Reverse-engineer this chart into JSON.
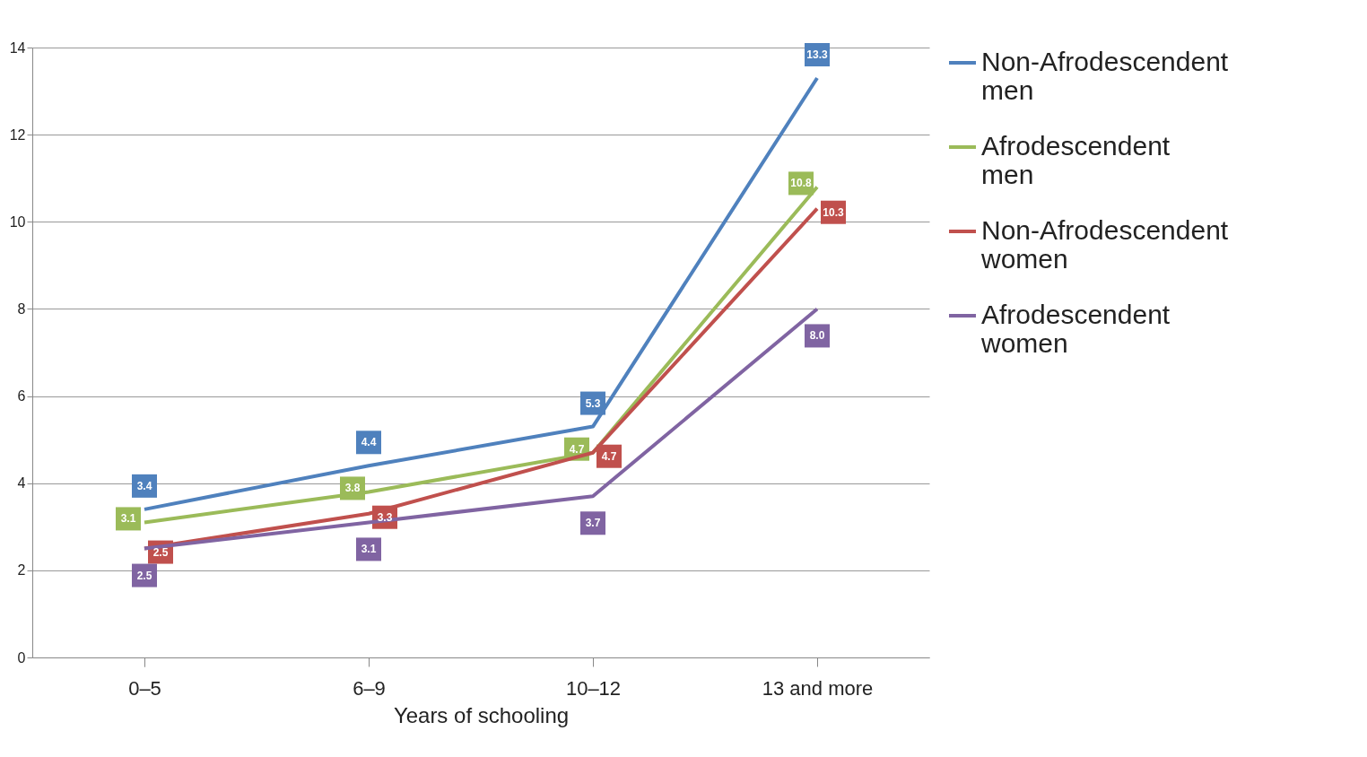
{
  "chart_data": {
    "type": "line",
    "xlabel": "Years of schooling",
    "categories": [
      "0–5",
      "6–9",
      "10–12",
      "13 and more"
    ],
    "ylim": [
      0,
      14
    ],
    "yticks": [
      0,
      2,
      4,
      6,
      8,
      10,
      12,
      14
    ],
    "grid": "y",
    "legend": "right",
    "marker": "none",
    "line_style": "solid",
    "series": [
      {
        "name": "Non-Afrodescendent men",
        "color": "#4f81bd",
        "values": [
          3.4,
          4.4,
          5.3,
          13.3
        ],
        "value_labels": [
          "3.4",
          "4.4",
          "5.3",
          "13.3"
        ]
      },
      {
        "name": "Afrodescendent men",
        "color": "#9bbb59",
        "values": [
          3.1,
          3.8,
          4.7,
          10.8
        ],
        "value_labels": [
          "3.1",
          "3.8",
          "4.7",
          "10.8"
        ]
      },
      {
        "name": "Non-Afrodescendent women",
        "color": "#c0504d",
        "values": [
          2.5,
          3.3,
          4.7,
          10.3
        ],
        "value_labels": [
          "2.5",
          "3.3",
          "4.7",
          "10.3"
        ]
      },
      {
        "name": "Afrodescendent women",
        "color": "#8064a2",
        "values": [
          2.5,
          3.1,
          3.7,
          8.0
        ],
        "value_labels": [
          "2.5",
          "3.1",
          "3.7",
          "8.0"
        ]
      }
    ]
  }
}
